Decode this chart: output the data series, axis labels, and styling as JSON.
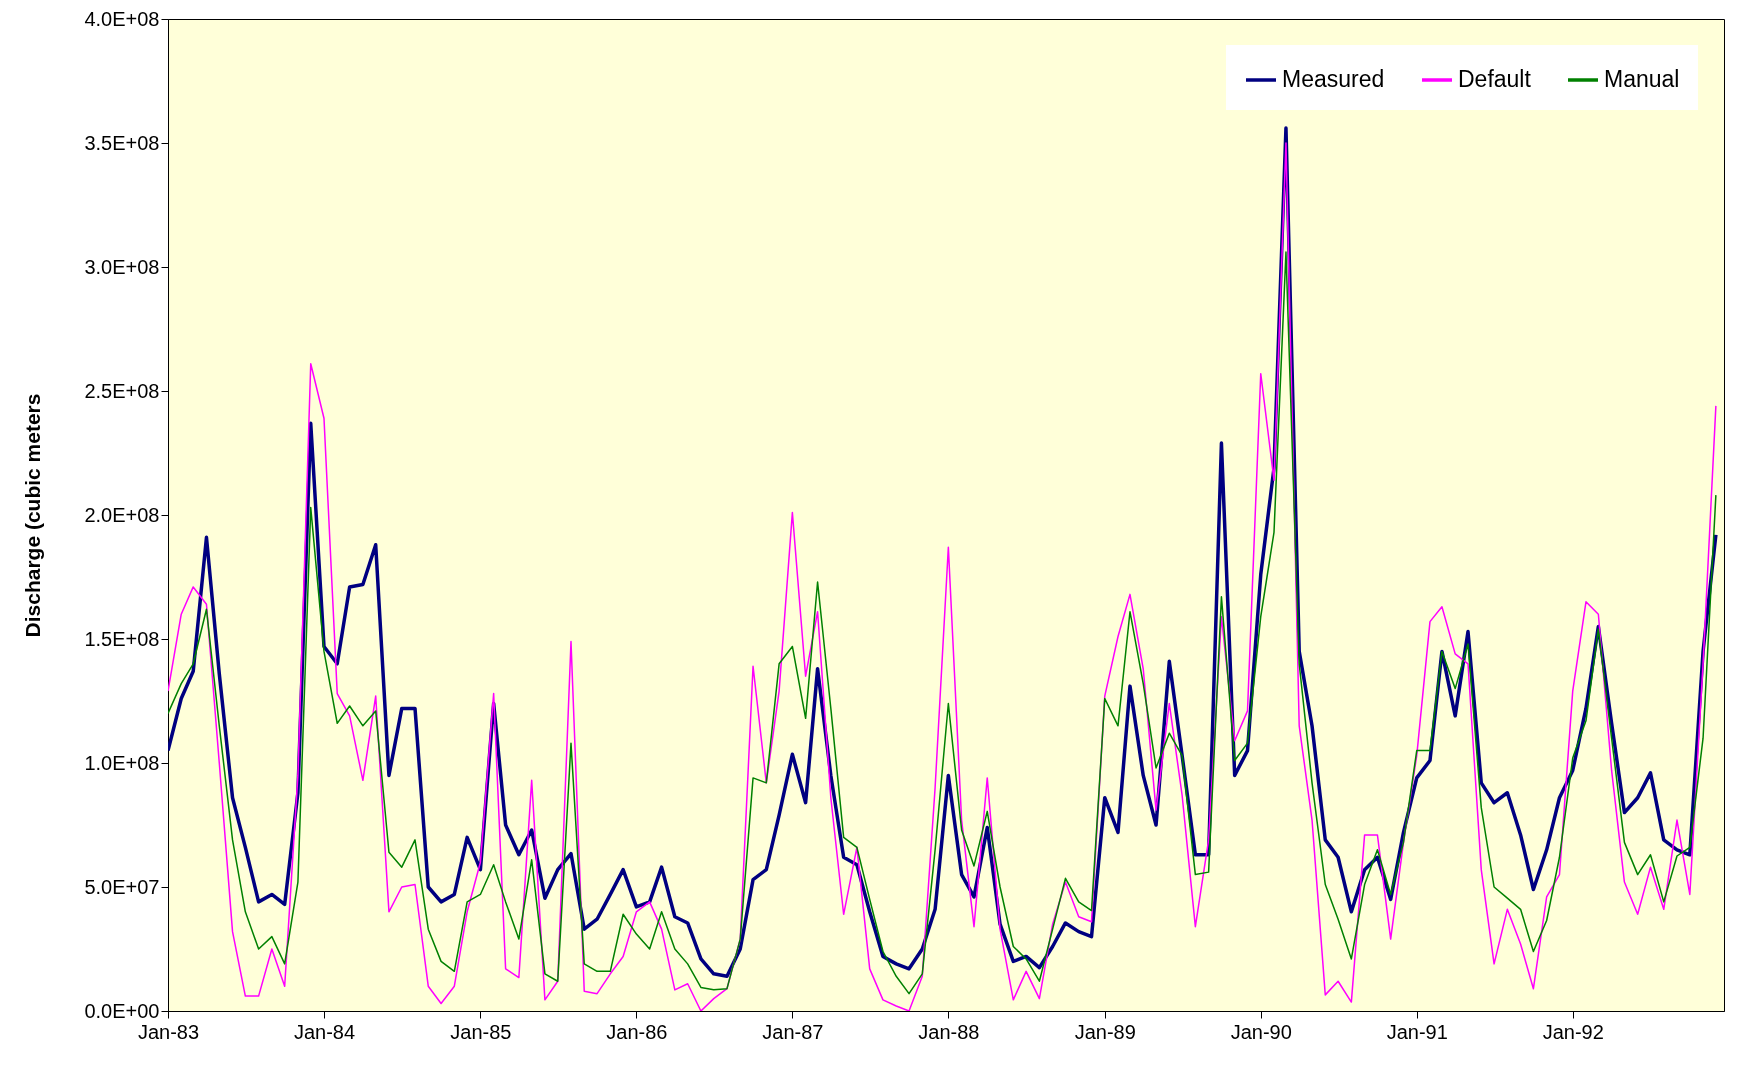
{
  "chart_data": {
    "type": "line",
    "ylabel": "Discharge (cubic meters",
    "x": [
      "1983-01",
      "1983-02",
      "1983-03",
      "1983-04",
      "1983-05",
      "1983-06",
      "1983-07",
      "1983-08",
      "1983-09",
      "1983-10",
      "1983-11",
      "1983-12",
      "1984-01",
      "1984-02",
      "1984-03",
      "1984-04",
      "1984-05",
      "1984-06",
      "1984-07",
      "1984-08",
      "1984-09",
      "1984-10",
      "1984-11",
      "1984-12",
      "1985-01",
      "1985-02",
      "1985-03",
      "1985-04",
      "1985-05",
      "1985-06",
      "1985-07",
      "1985-08",
      "1985-09",
      "1985-10",
      "1985-11",
      "1985-12",
      "1986-01",
      "1986-02",
      "1986-03",
      "1986-04",
      "1986-05",
      "1986-06",
      "1986-07",
      "1986-08",
      "1986-09",
      "1986-10",
      "1986-11",
      "1986-12",
      "1987-01",
      "1987-02",
      "1987-03",
      "1987-04",
      "1987-05",
      "1987-06",
      "1987-07",
      "1987-08",
      "1987-09",
      "1987-10",
      "1987-11",
      "1987-12",
      "1988-01",
      "1988-02",
      "1988-03",
      "1988-04",
      "1988-05",
      "1988-06",
      "1988-07",
      "1988-08",
      "1988-09",
      "1988-10",
      "1988-11",
      "1988-12",
      "1989-01",
      "1989-02",
      "1989-03",
      "1989-04",
      "1989-05",
      "1989-06",
      "1989-07",
      "1989-08",
      "1989-09",
      "1989-10",
      "1989-11",
      "1989-12",
      "1990-01",
      "1990-02",
      "1990-03",
      "1990-04",
      "1990-05",
      "1990-06",
      "1990-07",
      "1990-08",
      "1990-09",
      "1990-10",
      "1990-11",
      "1990-12",
      "1991-01",
      "1991-02",
      "1991-03",
      "1991-04",
      "1991-05",
      "1991-06",
      "1991-07",
      "1991-08",
      "1991-09",
      "1991-10",
      "1991-11",
      "1991-12",
      "1992-01",
      "1992-02",
      "1992-03",
      "1992-04",
      "1992-05",
      "1992-06",
      "1992-07",
      "1992-08",
      "1992-09",
      "1992-10",
      "1992-11",
      "1992-12"
    ],
    "series": [
      {
        "name": "Measured",
        "color": "#000080",
        "values": [
          105000000.0,
          126000000.0,
          137000000.0,
          191000000.0,
          136000000.0,
          86000000.0,
          66000000.0,
          44000000.0,
          47000000.0,
          43000000.0,
          88000000.0,
          237000000.0,
          147000000.0,
          140000000.0,
          171000000.0,
          172000000.0,
          188000000.0,
          95000000.0,
          122000000.0,
          122000000.0,
          50000000.0,
          44000000.0,
          47000000.0,
          70000000.0,
          57000000.0,
          124000000.0,
          75000000.0,
          63000000.0,
          73000000.0,
          45500000.0,
          57000000.0,
          63500000.0,
          33000000.0,
          37000000.0,
          47000000.0,
          57000000.0,
          42000000.0,
          44000000.0,
          58000000.0,
          38000000.0,
          35500000.0,
          21000000.0,
          15000000.0,
          14000000.0,
          25000000.0,
          53000000.0,
          57000000.0,
          79000000.0,
          103500000.0,
          84000000.0,
          138000000.0,
          95000000.0,
          62000000.0,
          59000000.0,
          40000000.0,
          22000000.0,
          19000000.0,
          17000000.0,
          25000000.0,
          41000000.0,
          95000000.0,
          55000000.0,
          46000000.0,
          74000000.0,
          35000000.0,
          20000000.0,
          22000000.0,
          17500000.0,
          26000000.0,
          35500000.0,
          32000000.0,
          30000000.0,
          86000000.0,
          72000000.0,
          131000000.0,
          95000000.0,
          75000000.0,
          141000000.0,
          103000000.0,
          63000000.0,
          63000000.0,
          229000000.0,
          95000000.0,
          105000000.0,
          176000000.0,
          219000000.0,
          356000000.0,
          145000000.0,
          115000000.0,
          69000000.0,
          62000000.0,
          40000000.0,
          57000000.0,
          62000000.0,
          45000000.0,
          72000000.0,
          94000000.0,
          101000000.0,
          145000000.0,
          119000000.0,
          153000000.0,
          92000000.0,
          84000000.0,
          88000000.0,
          71000000.0,
          49000000.0,
          65000000.0,
          86000000.0,
          97000000.0,
          122000000.0,
          155000000.0,
          116000000.0,
          80000000.0,
          86000000.0,
          96000000.0,
          69000000.0,
          65000000.0,
          63000000.0,
          145000000.0,
          192000000.0
        ]
      },
      {
        "name": "Default",
        "color": "#ff00ff",
        "values": [
          129000000.0,
          160000000.0,
          171000000.0,
          164000000.0,
          100000000.0,
          32000000.0,
          6000000.0,
          6000000.0,
          25000000.0,
          10000000.0,
          95000000.0,
          261000000.0,
          239000000.0,
          128000000.0,
          119000000.0,
          93000000.0,
          127000000.0,
          40000000.0,
          50000000.0,
          51000000.0,
          10000000.0,
          3000000.0,
          10000000.0,
          40000000.0,
          60000000.0,
          128000000.0,
          17000000.0,
          13500000.0,
          93000000.0,
          4500000.0,
          12000000.0,
          149000000.0,
          8000000.0,
          7000000.0,
          15000000.0,
          22000000.0,
          40000000.0,
          44000000.0,
          33000000.0,
          8500000.0,
          11000000.0,
          0,
          5000000.0,
          9000000.0,
          29000000.0,
          139000000.0,
          92000000.0,
          129000000.0,
          201000000.0,
          135000000.0,
          161000000.0,
          86000000.0,
          39000000.0,
          66000000.0,
          17000000.0,
          4500000.0,
          2000000.0,
          0,
          14000000.0,
          90000000.0,
          187000000.0,
          77000000.0,
          34000000.0,
          94000000.0,
          33000000.0,
          4500000.0,
          16000000.0,
          5000000.0,
          35000000.0,
          52000000.0,
          38000000.0,
          36000000.0,
          127000000.0,
          151000000.0,
          168000000.0,
          138000000.0,
          81000000.0,
          124000000.0,
          87000000.0,
          34000000.0,
          69000000.0,
          159000000.0,
          109000000.0,
          121000000.0,
          257000000.0,
          214000000.0,
          350000000.0,
          115000000.0,
          77000000.0,
          6500000.0,
          12000000.0,
          3600000.0,
          71000000.0,
          71000000.0,
          29000000.0,
          68000000.0,
          103000000.0,
          157000000.0,
          163000000.0,
          144000000.0,
          140000000.0,
          57000000.0,
          19000000.0,
          41000000.0,
          27000000.0,
          9000000.0,
          46000000.0,
          55000000.0,
          129000000.0,
          165000000.0,
          160000000.0,
          97000000.0,
          52000000.0,
          39000000.0,
          58000000.0,
          41000000.0,
          77000000.0,
          47000000.0,
          140000000.0,
          244000000.0
        ]
      },
      {
        "name": "Manual",
        "color": "#008000",
        "values": [
          120000000.0,
          132000000.0,
          140000000.0,
          162000000.0,
          115000000.0,
          69000000.0,
          40000000.0,
          25000000.0,
          30000000.0,
          19000000.0,
          52000000.0,
          203000000.0,
          145000000.0,
          116000000.0,
          123000000.0,
          115000000.0,
          121000000.0,
          64000000.0,
          58000000.0,
          69000000.0,
          33000000.0,
          20000000.0,
          16000000.0,
          44000000.0,
          47000000.0,
          59000000.0,
          44000000.0,
          29000000.0,
          61000000.0,
          15000000.0,
          12000000.0,
          108000000.0,
          19000000.0,
          16000000.0,
          16000000.0,
          39000000.0,
          31000000.0,
          25000000.0,
          40000000.0,
          25000000.0,
          19000000.0,
          9500000.0,
          8600000.0,
          9000000.0,
          29000000.0,
          94000000.0,
          92000000.0,
          140000000.0,
          147000000.0,
          118000000.0,
          173000000.0,
          122000000.0,
          70000000.0,
          66000000.0,
          45000000.0,
          24000000.0,
          14000000.0,
          7000000.0,
          15000000.0,
          65000000.0,
          124000000.0,
          73000000.0,
          58500000.0,
          80500000.0,
          50000000.0,
          26000000.0,
          21000000.0,
          12000000.0,
          33000000.0,
          53500000.0,
          44000000.0,
          40500000.0,
          126000000.0,
          115000000.0,
          161000000.0,
          132000000.0,
          98000000.0,
          112000000.0,
          103000000.0,
          55000000.0,
          56000000.0,
          167000000.0,
          101000000.0,
          108000000.0,
          159000000.0,
          193000000.0,
          306000000.0,
          140000000.0,
          92000000.0,
          51000000.0,
          37000000.0,
          21000000.0,
          51000000.0,
          65000000.0,
          47000000.0,
          68000000.0,
          105000000.0,
          105000000.0,
          145000000.0,
          130000000.0,
          148000000.0,
          82000000.0,
          50000000.0,
          45500000.0,
          41000000.0,
          24000000.0,
          36500000.0,
          62000000.0,
          102000000.0,
          117000000.0,
          154000000.0,
          110000000.0,
          68000000.0,
          55000000.0,
          63000000.0,
          44000000.0,
          62500000.0,
          66000000.0,
          110000000.0,
          208000000.0
        ]
      }
    ],
    "xlim": [
      "1983-01",
      "1992-12-20"
    ],
    "xticks": [
      {
        "value": "1983-01",
        "label": "Jan-83"
      },
      {
        "value": "1984-01",
        "label": "Jan-84"
      },
      {
        "value": "1985-01",
        "label": "Jan-85"
      },
      {
        "value": "1986-01",
        "label": "Jan-86"
      },
      {
        "value": "1987-01",
        "label": "Jan-87"
      },
      {
        "value": "1988-01",
        "label": "Jan-88"
      },
      {
        "value": "1989-01",
        "label": "Jan-89"
      },
      {
        "value": "1990-01",
        "label": "Jan-90"
      },
      {
        "value": "1991-01",
        "label": "Jan-91"
      },
      {
        "value": "1992-01",
        "label": "Jan-92"
      }
    ],
    "ylim": [
      0,
      400000000.0
    ],
    "yticks": [
      {
        "value": 0,
        "label": "0.0E+00"
      },
      {
        "value": 50000000.0,
        "label": "5.0E+07"
      },
      {
        "value": 100000000.0,
        "label": "1.0E+08"
      },
      {
        "value": 150000000.0,
        "label": "1.5E+08"
      },
      {
        "value": 200000000.0,
        "label": "2.0E+08"
      },
      {
        "value": 250000000.0,
        "label": "2.5E+08"
      },
      {
        "value": 300000000.0,
        "label": "3.0E+08"
      },
      {
        "value": 350000000.0,
        "label": "3.5E+08"
      },
      {
        "value": 400000000.0,
        "label": "4.0E+08"
      }
    ],
    "grid": false,
    "legend": "top right"
  }
}
